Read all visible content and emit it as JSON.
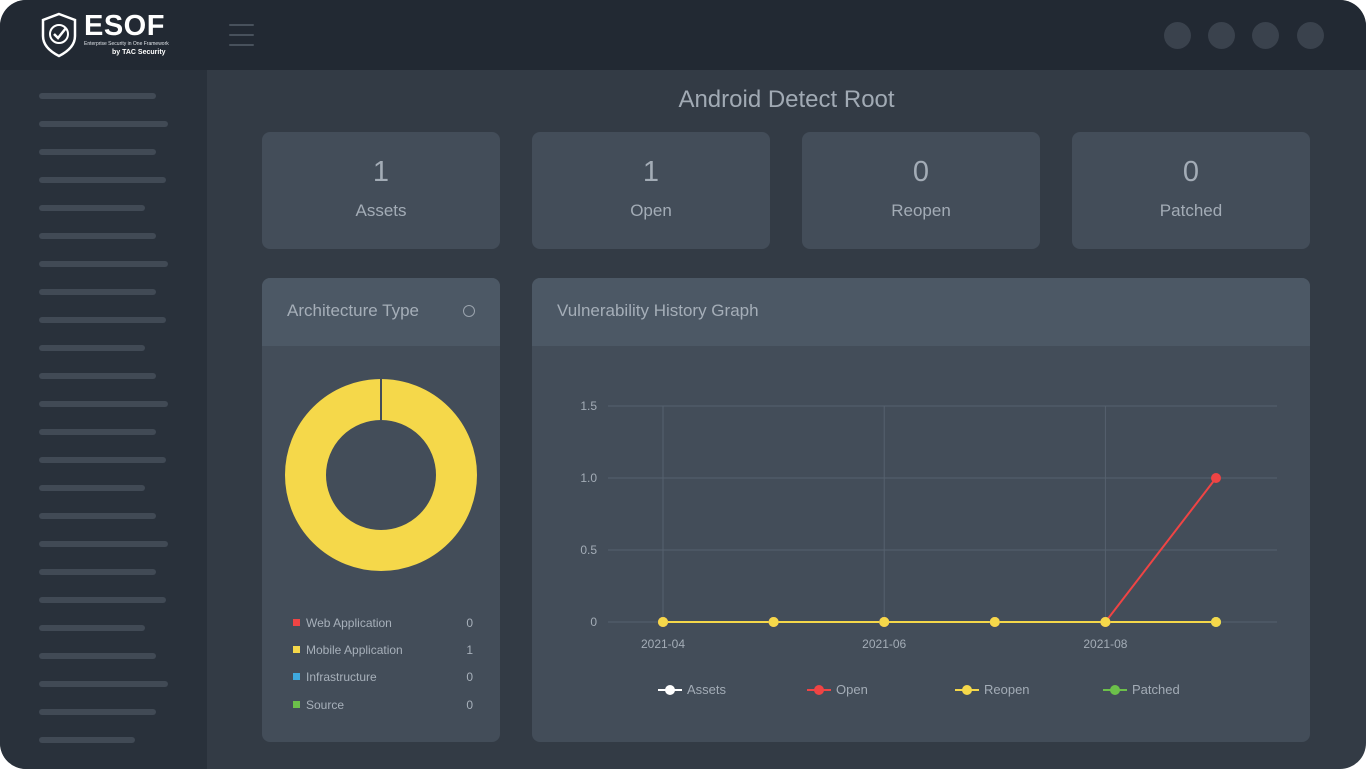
{
  "brand": {
    "name": "ESOF",
    "tagline": "Enterprise Security in One Framework",
    "by": "by TAC Security"
  },
  "page": {
    "title": "Android Detect Root"
  },
  "stats": [
    {
      "value": "1",
      "label": "Assets"
    },
    {
      "value": "1",
      "label": "Open"
    },
    {
      "value": "0",
      "label": "Reopen"
    },
    {
      "value": "0",
      "label": "Patched"
    }
  ],
  "architecture": {
    "title": "Architecture Type",
    "items": [
      {
        "label": "Web Application",
        "value": "0",
        "color": "#ef4444"
      },
      {
        "label": "Mobile Application",
        "value": "1",
        "color": "#f5d84a"
      },
      {
        "label": "Infrastructure",
        "value": "0",
        "color": "#3fa9de"
      },
      {
        "label": "Source",
        "value": "0",
        "color": "#6cc04a"
      }
    ]
  },
  "history": {
    "title": "Vulnerability History Graph"
  },
  "chart_data": [
    {
      "type": "pie",
      "categories": [
        "Web Application",
        "Mobile Application",
        "Infrastructure",
        "Source"
      ],
      "values": [
        0,
        1,
        0,
        0
      ],
      "colors": [
        "#ef4444",
        "#f5d84a",
        "#3fa9de",
        "#6cc04a"
      ],
      "donut": true,
      "legend": "bottom"
    },
    {
      "type": "line",
      "x": [
        "2021-04",
        "2021-05",
        "2021-06",
        "2021-07",
        "2021-08",
        "2021-09"
      ],
      "xticks": [
        "2021-04",
        "2021-06",
        "2021-08"
      ],
      "yticks": [
        "0",
        "0.5",
        "1.0",
        "1.5"
      ],
      "ylim": [
        0,
        1.5
      ],
      "grid": true,
      "legend": "bottom",
      "series": [
        {
          "name": "Assets",
          "color": "#ffffff",
          "values": [
            0,
            0,
            0,
            0,
            0,
            0
          ]
        },
        {
          "name": "Open",
          "color": "#ef4444",
          "values": [
            0,
            0,
            0,
            0,
            0,
            1
          ]
        },
        {
          "name": "Reopen",
          "color": "#f5d84a",
          "values": [
            0,
            0,
            0,
            0,
            0,
            0
          ]
        },
        {
          "name": "Patched",
          "color": "#6cc04a",
          "values": [
            0,
            0,
            0,
            0,
            0,
            0
          ]
        }
      ]
    }
  ]
}
